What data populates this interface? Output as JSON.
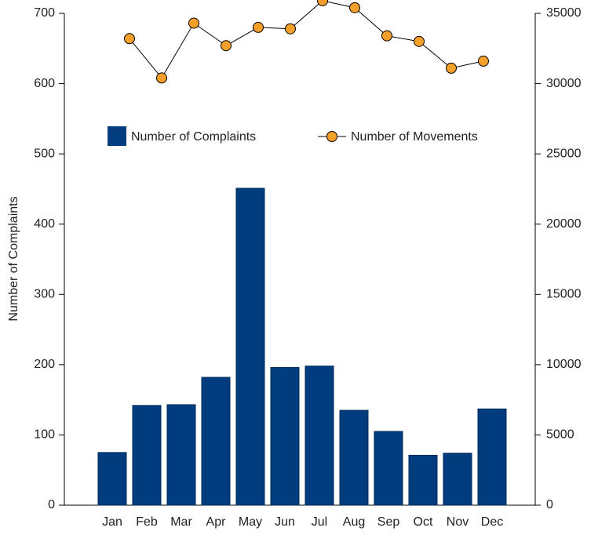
{
  "chart_data": {
    "type": "bar_line",
    "y_label": "Number of Complaints",
    "categories": [
      "Jan",
      "Feb",
      "Mar",
      "Apr",
      "May",
      "Jun",
      "Jul",
      "Aug",
      "Sep",
      "Oct",
      "Nov",
      "Dec"
    ],
    "series": [
      {
        "name": "Number of Complaints",
        "type": "bar",
        "color": "#003c7e",
        "values": [
          75,
          142,
          143,
          182,
          451,
          196,
          198,
          135,
          105,
          71,
          74,
          137
        ]
      },
      {
        "name": "Number of Movements",
        "type": "line",
        "axis": "y2",
        "color": "#f5a02a",
        "values": [
          33200,
          30400,
          34300,
          32700,
          34000,
          33900,
          35900,
          35400,
          33400,
          33000,
          31100,
          31600
        ]
      }
    ],
    "ylim": [
      0,
      700
    ],
    "yticks": [
      0,
      100,
      200,
      300,
      400,
      500,
      600,
      700
    ],
    "y2lim": [
      0,
      35000
    ],
    "y2ticks": [
      0,
      5000,
      10000,
      15000,
      20000,
      25000,
      30000,
      35000
    ]
  }
}
